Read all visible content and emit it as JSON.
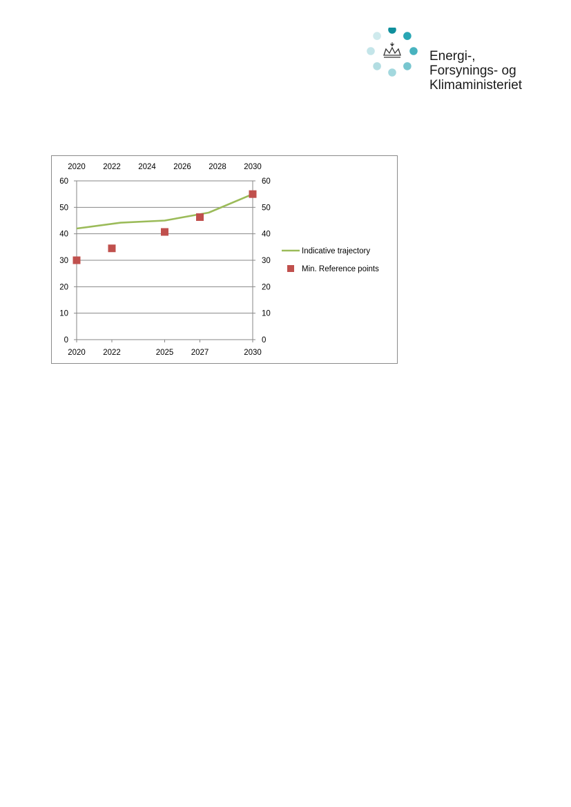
{
  "logo": {
    "lines": [
      "Energi-,",
      "Forsynings- og",
      "Klimaministeriet"
    ],
    "dot_colors": [
      "#0f8f9c",
      "#2aa6b4",
      "#48b3bf",
      "#78c6cf",
      "#a3d8de",
      "#b3dde2",
      "#c4e5e9",
      "#cfeaed"
    ]
  },
  "chart_data": {
    "type": "line",
    "title": "",
    "xlabel": "",
    "ylabel": "",
    "ylim": [
      0,
      60
    ],
    "y_ticks": [
      0,
      10,
      20,
      30,
      40,
      50,
      60
    ],
    "secondary_y_ticks": [
      0,
      10,
      20,
      30,
      40,
      50,
      60
    ],
    "x_bottom_ticks": [
      "2020",
      "2022",
      "2025",
      "2027",
      "2030"
    ],
    "x_top_ticks": [
      "2020",
      "2022",
      "2024",
      "2026",
      "2028",
      "2030"
    ],
    "xlim": [
      2020,
      2030
    ],
    "grid": true,
    "legend_position": "right",
    "series": [
      {
        "name": "Indicative trajectory",
        "type": "line",
        "color": "#9bbb59",
        "x": [
          2020,
          2022.5,
          2025,
          2027.5,
          2030
        ],
        "y": [
          42,
          44.2,
          45,
          48,
          55
        ]
      },
      {
        "name": "Min. Reference points",
        "type": "scatter",
        "color": "#c0504d",
        "x": [
          2020,
          2022,
          2025,
          2027,
          2030
        ],
        "y": [
          30,
          34.5,
          40.7,
          46.3,
          55
        ]
      }
    ]
  }
}
